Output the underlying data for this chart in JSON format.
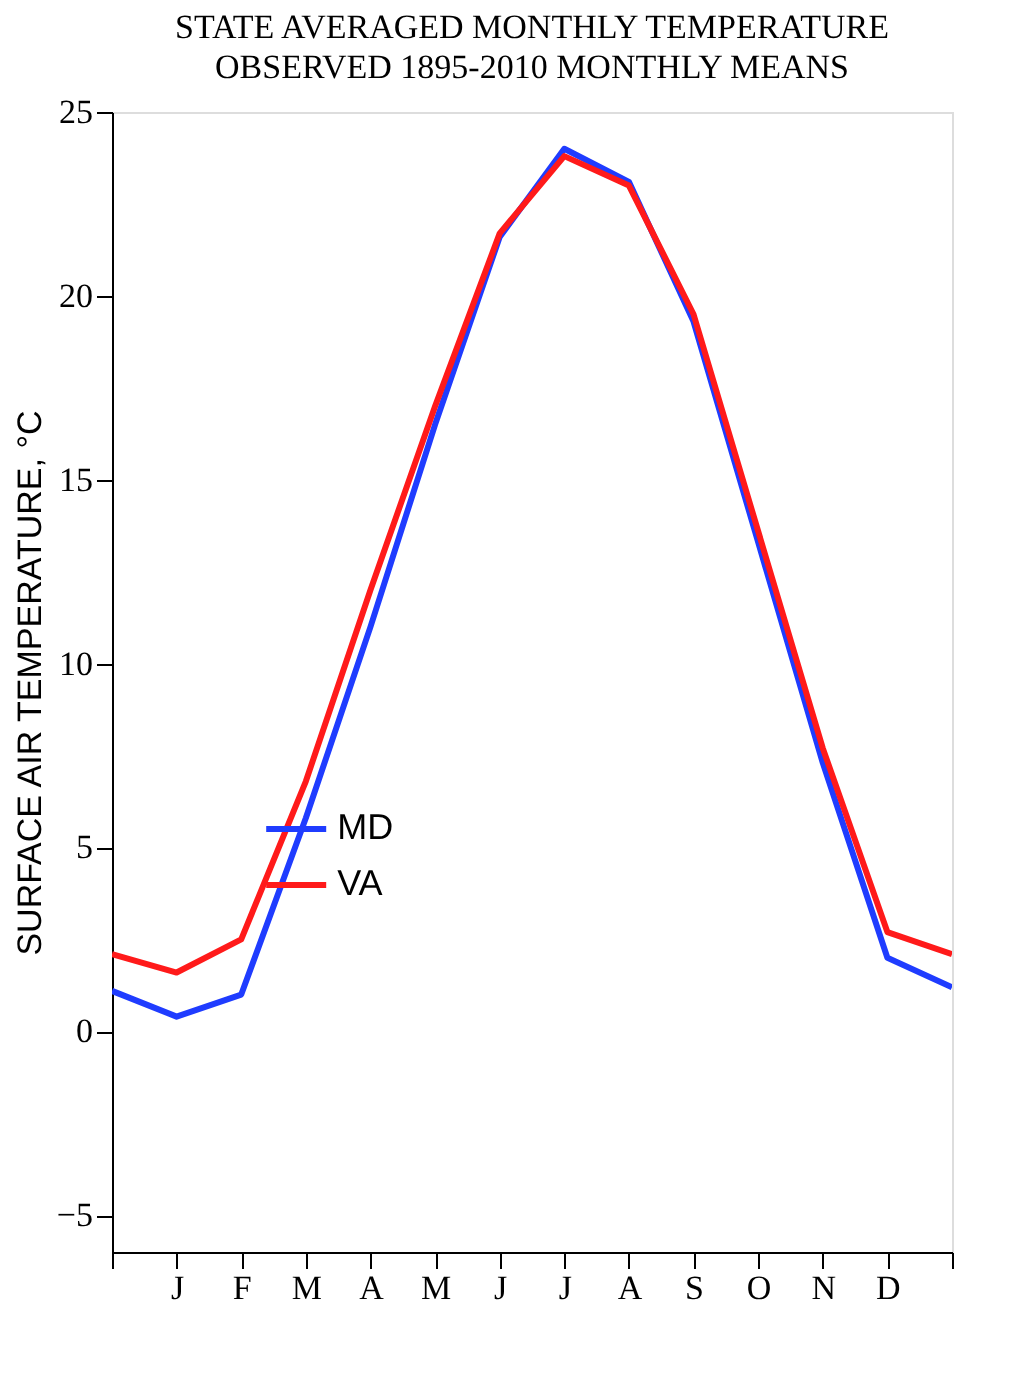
{
  "chart_data": {
    "type": "line",
    "title": "STATE AVERAGED MONTHLY TEMPERATURE",
    "subtitle": "OBSERVED 1895-2010 MONTHLY MEANS",
    "ylabel": "SURFACE AIR TEMPERATURE, °C",
    "categories": [
      null,
      "J",
      "F",
      "M",
      "A",
      "M",
      "J",
      "J",
      "A",
      "S",
      "O",
      "N",
      "D",
      null
    ],
    "series": [
      {
        "name": "MD",
        "color": "#1f3cff",
        "values": [
          1.1,
          0.4,
          1.0,
          5.8,
          11.0,
          16.5,
          21.6,
          24.0,
          23.1,
          19.3,
          13.3,
          7.3,
          2.0,
          1.2
        ]
      },
      {
        "name": "VA",
        "color": "#ff1a1a",
        "values": [
          2.1,
          1.6,
          2.5,
          6.8,
          12.0,
          17.0,
          21.7,
          23.8,
          23.0,
          19.5,
          13.6,
          7.7,
          2.7,
          2.1
        ]
      }
    ],
    "ylim": [
      -6,
      25
    ],
    "yticks": [
      -5,
      0,
      5,
      10,
      15,
      20,
      25
    ],
    "grid": false,
    "legend": "left",
    "marker": "none",
    "line_style": "solid"
  }
}
